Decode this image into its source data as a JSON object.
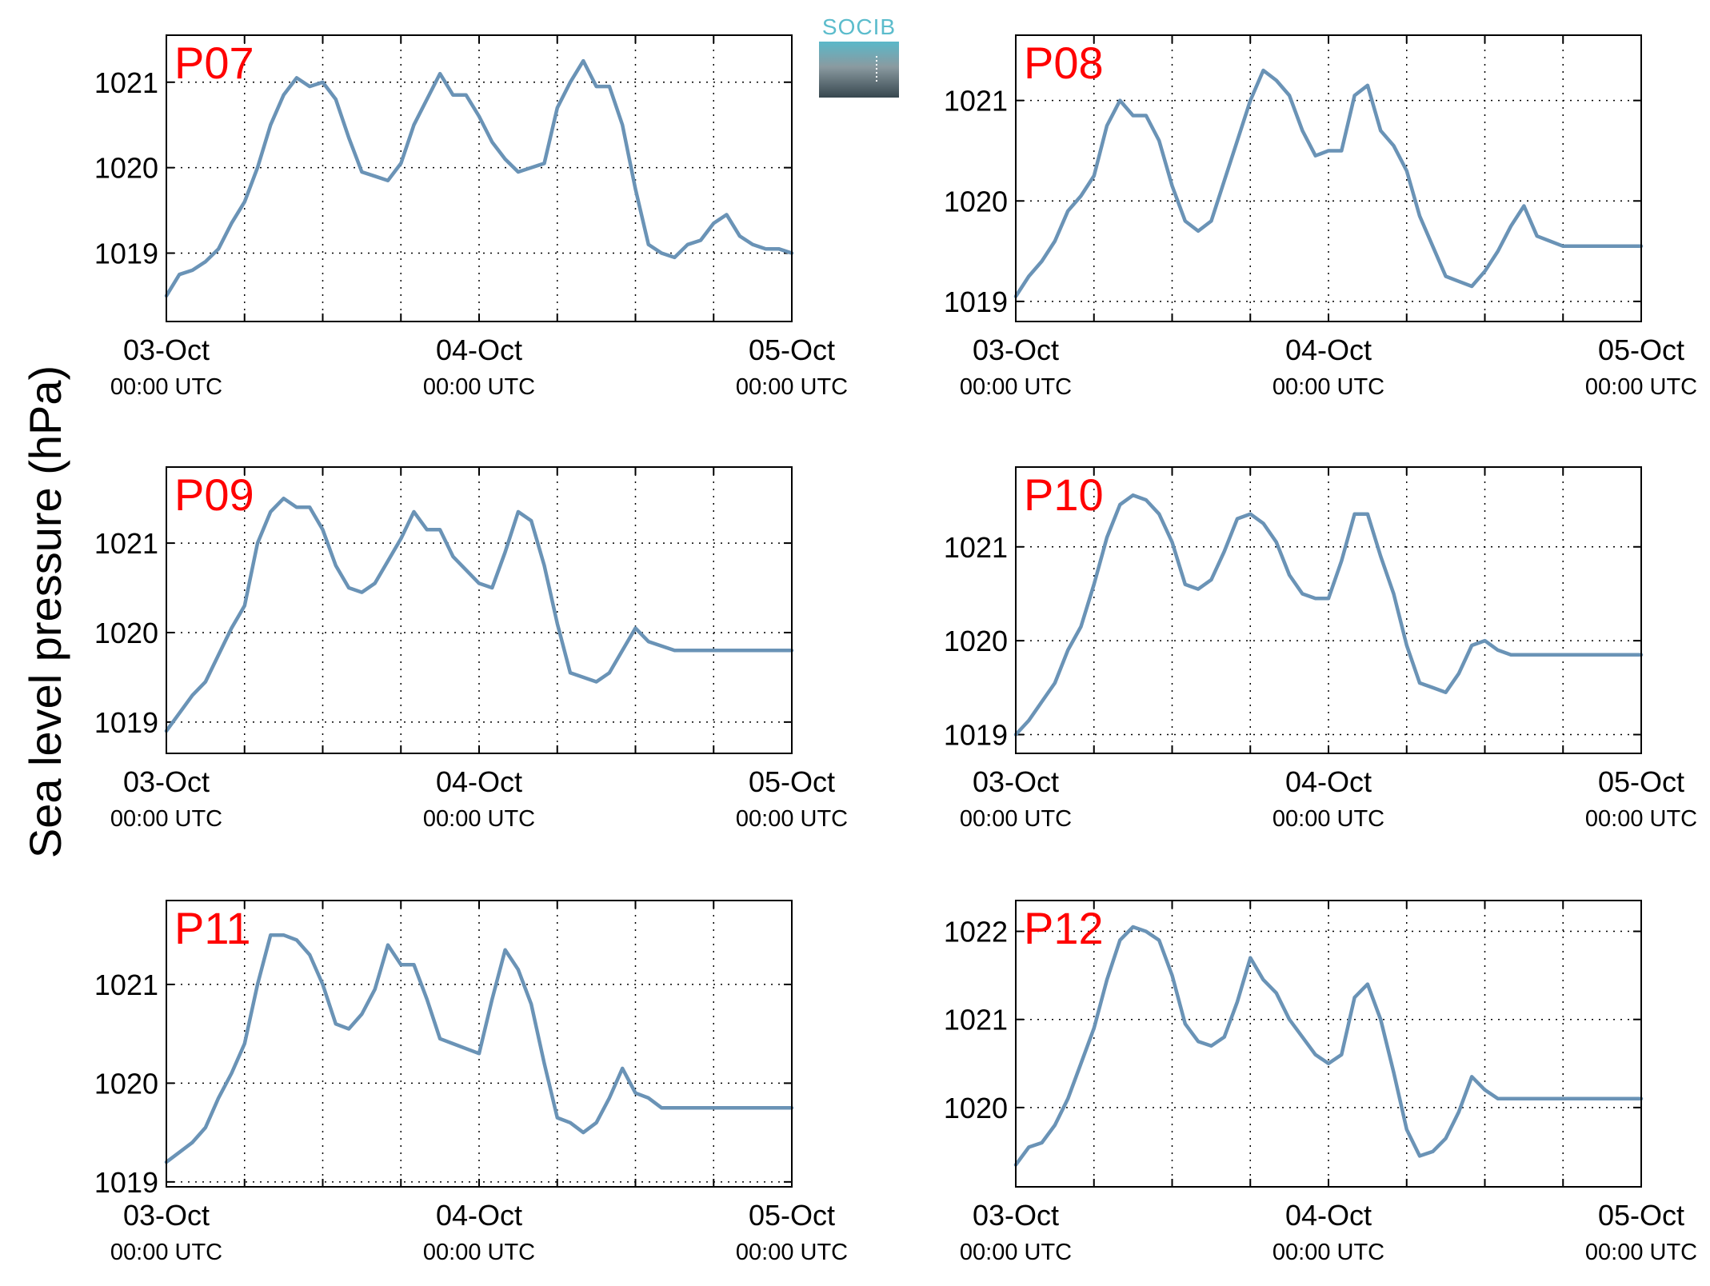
{
  "figure": {
    "ylabel": "Sea level pressure (hPa)",
    "logo_text": "SOCIB",
    "colors": {
      "line": "#6a93b6",
      "panel_label": "#ff0000",
      "axes": "#000000",
      "grid": "#000000",
      "logo_text": "#5bbccc",
      "logo_top": "#5ab8c9",
      "logo_mid": "#8a9aa0",
      "logo_bottom": "#37474f"
    }
  },
  "chart_data": [
    {
      "type": "line",
      "label": "P07",
      "x_range": [
        "03-Oct 00:00",
        "05-Oct 00:00"
      ],
      "x_ticks": [
        {
          "date": "03-Oct",
          "time": "00:00 UTC"
        },
        {
          "date": "04-Oct",
          "time": "00:00 UTC"
        },
        {
          "date": "05-Oct",
          "time": "00:00 UTC"
        }
      ],
      "ylim": [
        1018.2,
        1021.55
      ],
      "yticks": [
        1019,
        1020,
        1021
      ],
      "grid": true,
      "x_hours": [
        0,
        1,
        2,
        3,
        4,
        5,
        6,
        7,
        8,
        9,
        10,
        11,
        12,
        13,
        14,
        15,
        16,
        17,
        18,
        19,
        20,
        21,
        22,
        23,
        24,
        25,
        26,
        27,
        28,
        29,
        30,
        31,
        32,
        33,
        34,
        35,
        36,
        37,
        38,
        39,
        40,
        41,
        42,
        43,
        44,
        45,
        46,
        47,
        48
      ],
      "values": [
        1018.5,
        1018.75,
        1018.8,
        1018.9,
        1019.05,
        1019.35,
        1019.6,
        1020.0,
        1020.5,
        1020.85,
        1021.05,
        1020.95,
        1021.0,
        1020.8,
        1020.35,
        1019.95,
        1019.9,
        1019.85,
        1020.05,
        1020.5,
        1020.8,
        1021.1,
        1020.85,
        1020.85,
        1020.6,
        1020.3,
        1020.1,
        1019.95,
        1020.0,
        1020.05,
        1020.7,
        1021.0,
        1021.25,
        1020.95,
        1020.95,
        1020.5,
        1019.75,
        1019.1,
        1019.0,
        1018.95,
        1019.1,
        1019.15,
        1019.35,
        1019.45,
        1019.2,
        1019.1,
        1019.05,
        1019.05,
        1019.0
      ]
    },
    {
      "type": "line",
      "label": "P08",
      "x_range": [
        "03-Oct 00:00",
        "05-Oct 00:00"
      ],
      "x_ticks": [
        {
          "date": "03-Oct",
          "time": "00:00 UTC"
        },
        {
          "date": "04-Oct",
          "time": "00:00 UTC"
        },
        {
          "date": "05-Oct",
          "time": "00:00 UTC"
        }
      ],
      "ylim": [
        1018.8,
        1021.65
      ],
      "yticks": [
        1019,
        1020,
        1021
      ],
      "grid": true,
      "x_hours": [
        0,
        1,
        2,
        3,
        4,
        5,
        6,
        7,
        8,
        9,
        10,
        11,
        12,
        13,
        14,
        15,
        16,
        17,
        18,
        19,
        20,
        21,
        22,
        23,
        24,
        25,
        26,
        27,
        28,
        29,
        30,
        31,
        32,
        33,
        34,
        35,
        36,
        37,
        38,
        39,
        40,
        41,
        42,
        43,
        44,
        45,
        46,
        47,
        48
      ],
      "values": [
        1019.05,
        1019.25,
        1019.4,
        1019.6,
        1019.9,
        1020.05,
        1020.25,
        1020.75,
        1021.0,
        1020.85,
        1020.85,
        1020.6,
        1020.15,
        1019.8,
        1019.7,
        1019.8,
        1020.2,
        1020.6,
        1021.0,
        1021.3,
        1021.2,
        1021.05,
        1020.7,
        1020.45,
        1020.5,
        1020.5,
        1021.05,
        1021.15,
        1020.7,
        1020.55,
        1020.3,
        1019.85,
        1019.55,
        1019.25,
        1019.2,
        1019.15,
        1019.3,
        1019.5,
        1019.75,
        1019.95,
        1019.65,
        1019.6,
        1019.55,
        1019.55,
        1019.55,
        1019.55,
        1019.55,
        1019.55,
        1019.55
      ]
    },
    {
      "type": "line",
      "label": "P09",
      "x_range": [
        "03-Oct 00:00",
        "05-Oct 00:00"
      ],
      "x_ticks": [
        {
          "date": "03-Oct",
          "time": "00:00 UTC"
        },
        {
          "date": "04-Oct",
          "time": "00:00 UTC"
        },
        {
          "date": "05-Oct",
          "time": "00:00 UTC"
        }
      ],
      "ylim": [
        1018.65,
        1021.85
      ],
      "yticks": [
        1019,
        1020,
        1021
      ],
      "grid": true,
      "x_hours": [
        0,
        1,
        2,
        3,
        4,
        5,
        6,
        7,
        8,
        9,
        10,
        11,
        12,
        13,
        14,
        15,
        16,
        17,
        18,
        19,
        20,
        21,
        22,
        23,
        24,
        25,
        26,
        27,
        28,
        29,
        30,
        31,
        32,
        33,
        34,
        35,
        36,
        37,
        38,
        39,
        40,
        41,
        42,
        43,
        44,
        45,
        46,
        47,
        48
      ],
      "values": [
        1018.9,
        1019.1,
        1019.3,
        1019.45,
        1019.75,
        1020.05,
        1020.3,
        1021.0,
        1021.35,
        1021.5,
        1021.4,
        1021.4,
        1021.15,
        1020.75,
        1020.5,
        1020.45,
        1020.55,
        1020.8,
        1021.05,
        1021.35,
        1021.15,
        1021.15,
        1020.85,
        1020.7,
        1020.55,
        1020.5,
        1020.9,
        1021.35,
        1021.25,
        1020.75,
        1020.1,
        1019.55,
        1019.5,
        1019.45,
        1019.55,
        1019.8,
        1020.05,
        1019.9,
        1019.85,
        1019.8,
        1019.8,
        1019.8,
        1019.8,
        1019.8,
        1019.8,
        1019.8,
        1019.8,
        1019.8,
        1019.8
      ]
    },
    {
      "type": "line",
      "label": "P10",
      "x_range": [
        "03-Oct 00:00",
        "05-Oct 00:00"
      ],
      "x_ticks": [
        {
          "date": "03-Oct",
          "time": "00:00 UTC"
        },
        {
          "date": "04-Oct",
          "time": "00:00 UTC"
        },
        {
          "date": "05-Oct",
          "time": "00:00 UTC"
        }
      ],
      "ylim": [
        1018.8,
        1021.85
      ],
      "yticks": [
        1019,
        1020,
        1021
      ],
      "grid": true,
      "x_hours": [
        0,
        1,
        2,
        3,
        4,
        5,
        6,
        7,
        8,
        9,
        10,
        11,
        12,
        13,
        14,
        15,
        16,
        17,
        18,
        19,
        20,
        21,
        22,
        23,
        24,
        25,
        26,
        27,
        28,
        29,
        30,
        31,
        32,
        33,
        34,
        35,
        36,
        37,
        38,
        39,
        40,
        41,
        42,
        43,
        44,
        45,
        46,
        47,
        48
      ],
      "values": [
        1019.0,
        1019.15,
        1019.35,
        1019.55,
        1019.9,
        1020.15,
        1020.6,
        1021.1,
        1021.45,
        1021.55,
        1021.5,
        1021.35,
        1021.05,
        1020.6,
        1020.55,
        1020.65,
        1020.95,
        1021.3,
        1021.35,
        1021.25,
        1021.05,
        1020.7,
        1020.5,
        1020.45,
        1020.45,
        1020.85,
        1021.35,
        1021.35,
        1020.9,
        1020.5,
        1019.95,
        1019.55,
        1019.5,
        1019.45,
        1019.65,
        1019.95,
        1020.0,
        1019.9,
        1019.85,
        1019.85,
        1019.85,
        1019.85,
        1019.85,
        1019.85,
        1019.85,
        1019.85,
        1019.85,
        1019.85,
        1019.85
      ]
    },
    {
      "type": "line",
      "label": "P11",
      "x_range": [
        "03-Oct 00:00",
        "05-Oct 00:00"
      ],
      "x_ticks": [
        {
          "date": "03-Oct",
          "time": "00:00 UTC"
        },
        {
          "date": "04-Oct",
          "time": "00:00 UTC"
        },
        {
          "date": "05-Oct",
          "time": "00:00 UTC"
        }
      ],
      "ylim": [
        1018.95,
        1021.85
      ],
      "yticks": [
        1019,
        1020,
        1021
      ],
      "grid": true,
      "x_hours": [
        0,
        1,
        2,
        3,
        4,
        5,
        6,
        7,
        8,
        9,
        10,
        11,
        12,
        13,
        14,
        15,
        16,
        17,
        18,
        19,
        20,
        21,
        22,
        23,
        24,
        25,
        26,
        27,
        28,
        29,
        30,
        31,
        32,
        33,
        34,
        35,
        36,
        37,
        38,
        39,
        40,
        41,
        42,
        43,
        44,
        45,
        46,
        47,
        48
      ],
      "values": [
        1019.2,
        1019.3,
        1019.4,
        1019.55,
        1019.85,
        1020.1,
        1020.4,
        1021.0,
        1021.5,
        1021.5,
        1021.45,
        1021.3,
        1021.0,
        1020.6,
        1020.55,
        1020.7,
        1020.95,
        1021.4,
        1021.2,
        1021.2,
        1020.85,
        1020.45,
        1020.4,
        1020.35,
        1020.3,
        1020.85,
        1021.35,
        1021.15,
        1020.8,
        1020.2,
        1019.65,
        1019.6,
        1019.5,
        1019.6,
        1019.85,
        1020.15,
        1019.9,
        1019.85,
        1019.75,
        1019.75,
        1019.75,
        1019.75,
        1019.75,
        1019.75,
        1019.75,
        1019.75,
        1019.75,
        1019.75,
        1019.75
      ]
    },
    {
      "type": "line",
      "label": "P12",
      "x_range": [
        "03-Oct 00:00",
        "05-Oct 00:00"
      ],
      "x_ticks": [
        {
          "date": "03-Oct",
          "time": "00:00 UTC"
        },
        {
          "date": "04-Oct",
          "time": "00:00 UTC"
        },
        {
          "date": "05-Oct",
          "time": "00:00 UTC"
        }
      ],
      "ylim": [
        1019.1,
        1022.35
      ],
      "yticks": [
        1020,
        1021,
        1022
      ],
      "grid": true,
      "x_hours": [
        0,
        1,
        2,
        3,
        4,
        5,
        6,
        7,
        8,
        9,
        10,
        11,
        12,
        13,
        14,
        15,
        16,
        17,
        18,
        19,
        20,
        21,
        22,
        23,
        24,
        25,
        26,
        27,
        28,
        29,
        30,
        31,
        32,
        33,
        34,
        35,
        36,
        37,
        38,
        39,
        40,
        41,
        42,
        43,
        44,
        45,
        46,
        47,
        48
      ],
      "values": [
        1019.35,
        1019.55,
        1019.6,
        1019.8,
        1020.1,
        1020.5,
        1020.9,
        1021.45,
        1021.9,
        1022.05,
        1022.0,
        1021.9,
        1021.5,
        1020.95,
        1020.75,
        1020.7,
        1020.8,
        1021.2,
        1021.7,
        1021.45,
        1021.3,
        1021.0,
        1020.8,
        1020.6,
        1020.5,
        1020.6,
        1021.25,
        1021.4,
        1021.0,
        1020.4,
        1019.75,
        1019.45,
        1019.5,
        1019.65,
        1019.95,
        1020.35,
        1020.2,
        1020.1,
        1020.1,
        1020.1,
        1020.1,
        1020.1,
        1020.1,
        1020.1,
        1020.1,
        1020.1,
        1020.1,
        1020.1,
        1020.1
      ]
    }
  ]
}
